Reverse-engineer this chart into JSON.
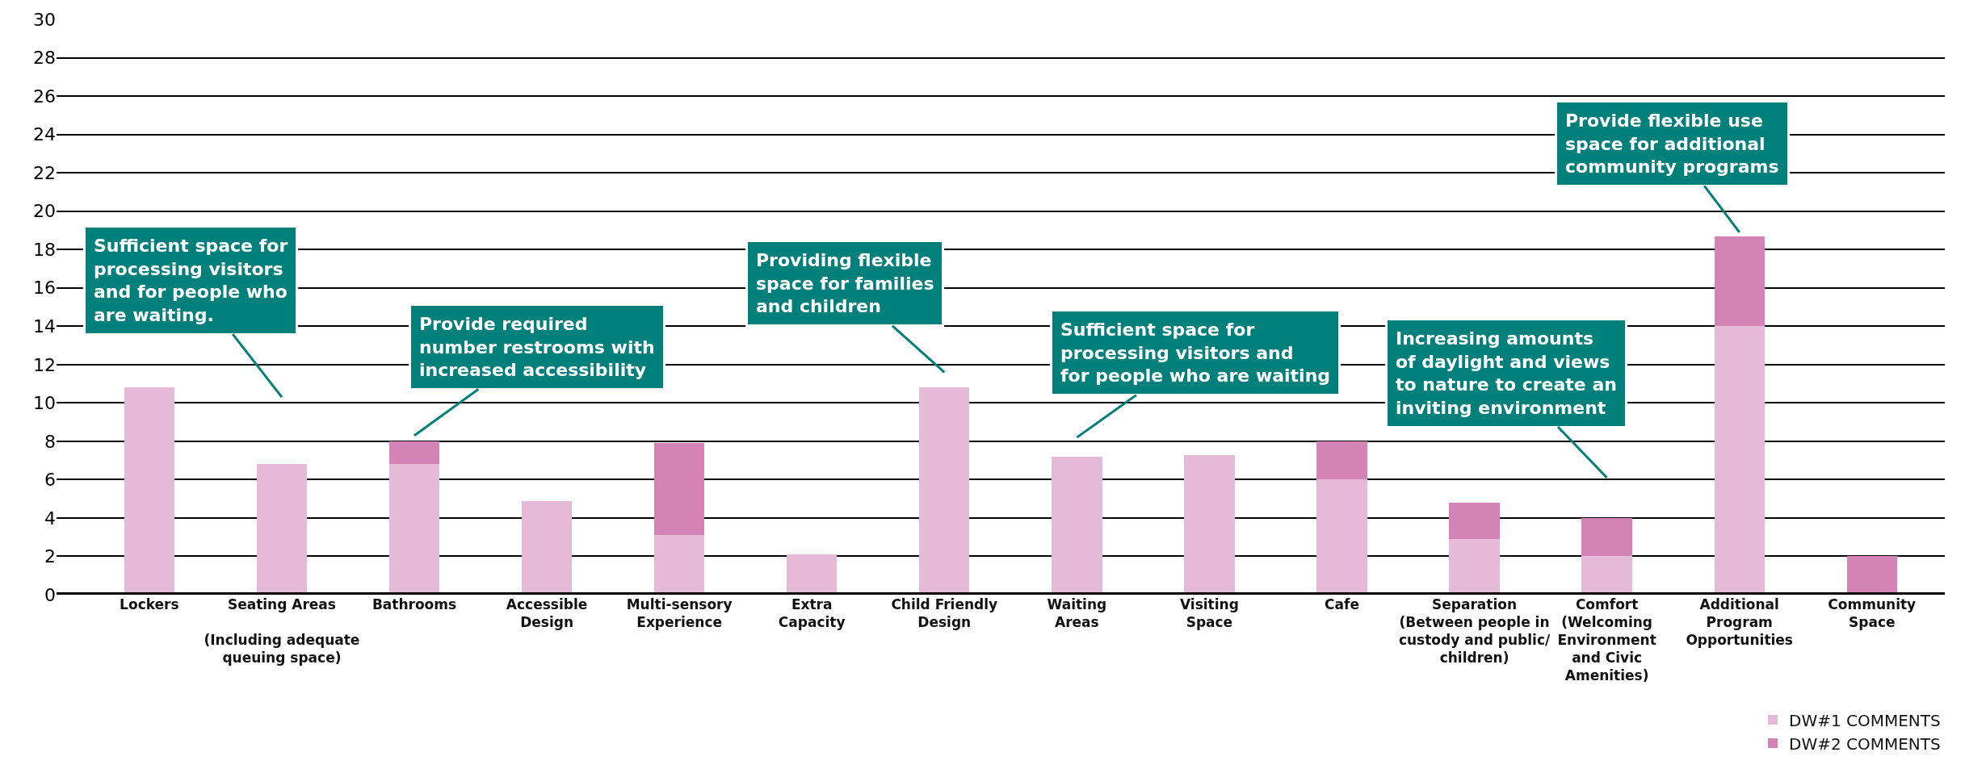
{
  "chart_data": {
    "type": "bar",
    "stacked": true,
    "categories": [
      "Lockers",
      "Seating Areas\n\n(Including adequate\nqueuing space)",
      "Bathrooms",
      "Accessible\nDesign",
      "Multi-sensory\nExperience",
      "Extra\nCapacity",
      "Child Friendly\nDesign",
      "Waiting\nAreas",
      "Visiting\nSpace",
      "Cafe",
      "Separation\n(Between people in\ncustody and public/\nchildren)",
      "Comfort\n(Welcoming\nEnvironment\nand Civic\nAmenities)",
      "Additional\nProgram\nOpportunities",
      "Community\nSpace"
    ],
    "series": [
      {
        "name": "DW#1 COMMENTS",
        "color": "#e5bad9",
        "values": [
          10.8,
          6.8,
          6.8,
          4.9,
          3.1,
          2.1,
          10.8,
          7.2,
          7.3,
          6.0,
          2.9,
          2.0,
          14.0,
          null
        ]
      },
      {
        "name": "DW#2 COMMENTS",
        "color": "#d383b5",
        "values": [
          null,
          null,
          1.2,
          null,
          4.8,
          null,
          null,
          null,
          null,
          2.0,
          1.9,
          2.0,
          4.7,
          2.0
        ]
      }
    ],
    "ylim": [
      0,
      30
    ],
    "yticks": [
      0,
      2,
      4,
      6,
      8,
      10,
      12,
      14,
      16,
      18,
      20,
      22,
      24,
      26,
      28,
      30
    ],
    "grid": "y",
    "legend": "bottom right",
    "annotations": [
      "Sufficient space for\nprocessing visitors\nand for people who\nare waiting.",
      "Provide required\nnumber restrooms with\nincreased accessibility",
      "Providing flexible\nspace for families\nand children",
      "Sufficient space for\nprocessing visitors and\nfor people who are waiting",
      "Increasing amounts\nof daylight and views\nto nature to create an\ninviting environment",
      "Provide flexible use\nspace for additional\ncommunity programs"
    ]
  }
}
